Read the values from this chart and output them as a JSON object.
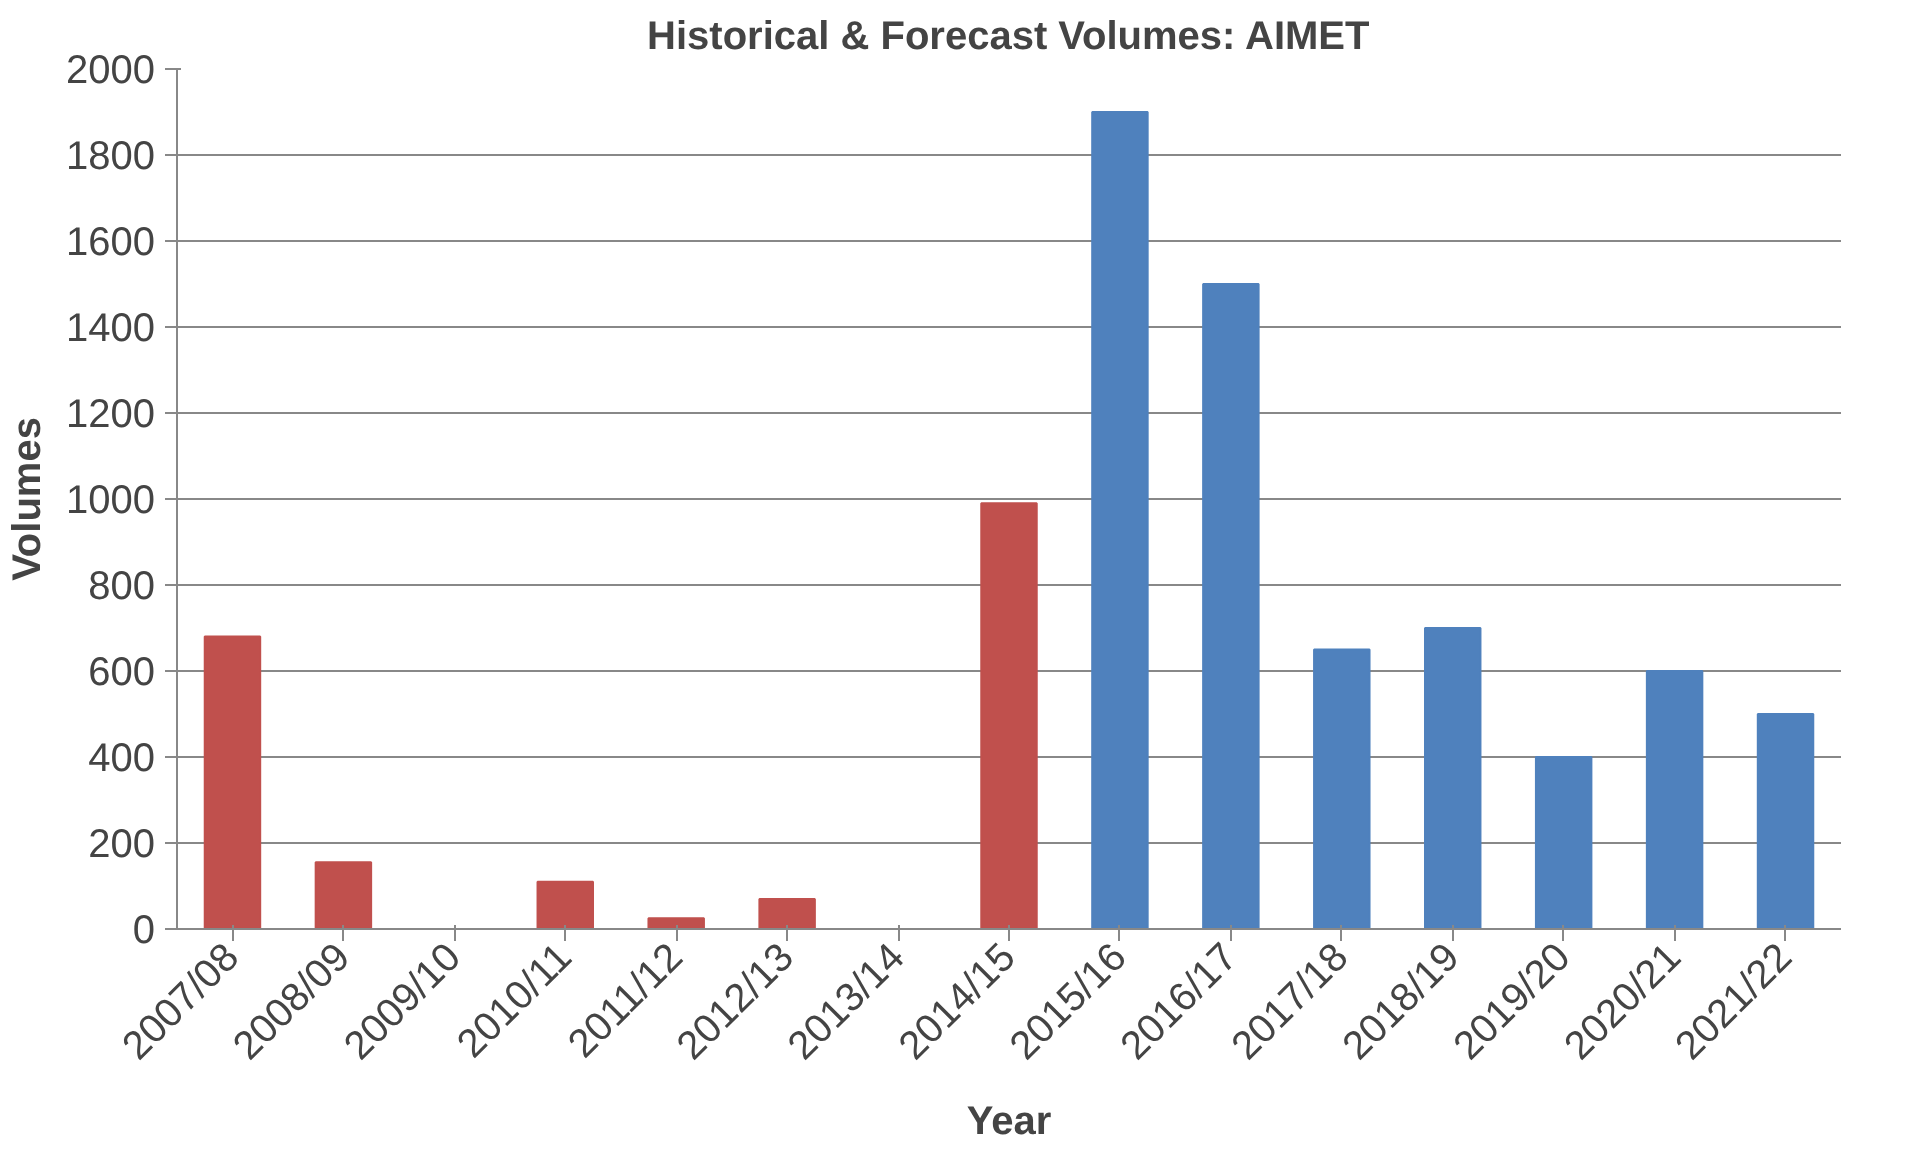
{
  "chart_data": {
    "type": "bar",
    "title": "Historical & Forecast Volumes: AIMET",
    "xlabel": "Year",
    "ylabel": "Volumes",
    "categories": [
      "2007/08",
      "2008/09",
      "2009/10",
      "2010/11",
      "2011/12",
      "2012/13",
      "2013/14",
      "2014/15",
      "2015/16",
      "2016/17",
      "2017/18",
      "2018/19",
      "2019/20",
      "2020/21",
      "2021/22"
    ],
    "values": [
      680,
      155,
      0,
      110,
      25,
      70,
      0,
      990,
      1900,
      1500,
      650,
      700,
      400,
      600,
      500
    ],
    "colors": [
      "#c0504d",
      "#c0504d",
      "#c0504d",
      "#c0504d",
      "#c0504d",
      "#c0504d",
      "#c0504d",
      "#c0504d",
      "#4f81bd",
      "#4f81bd",
      "#4f81bd",
      "#4f81bd",
      "#4f81bd",
      "#4f81bd",
      "#4f81bd"
    ],
    "ylim": [
      0,
      2000
    ],
    "yticks": [
      0,
      200,
      400,
      600,
      800,
      1000,
      1200,
      1400,
      1600,
      1800,
      2000
    ],
    "grid": "y"
  }
}
